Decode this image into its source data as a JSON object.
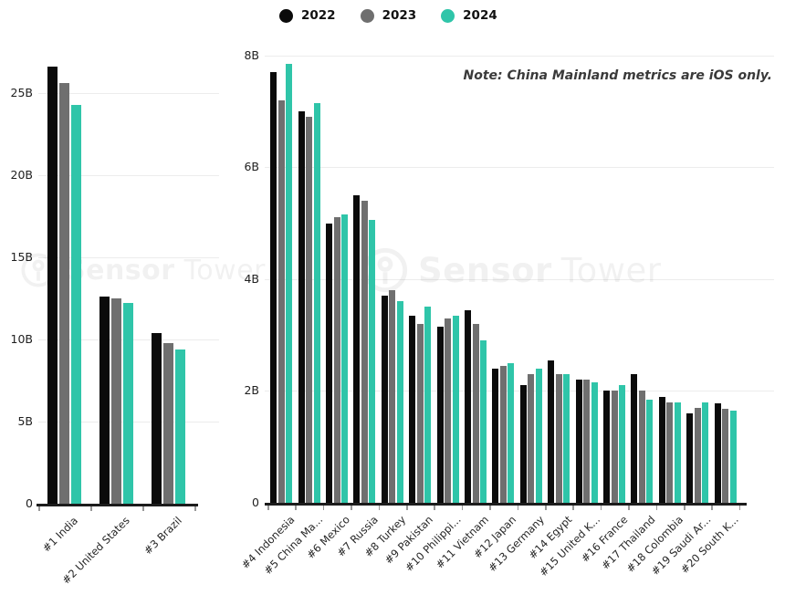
{
  "legend": {
    "items": [
      {
        "label": "2022",
        "color": "#0b0b0b"
      },
      {
        "label": "2023",
        "color": "#6f6f6f"
      },
      {
        "label": "2024",
        "color": "#2fc5a9"
      }
    ]
  },
  "note": "Note: China Mainland metrics are iOS only.",
  "watermark": {
    "brand_bold": "Sensor",
    "brand_light": "Tower"
  },
  "chart_data": [
    {
      "type": "bar",
      "categories": [
        "#1 India",
        "#2 United States",
        "#3 Brazil"
      ],
      "series": [
        {
          "name": "2022",
          "color": "#0b0b0b",
          "values": [
            26.6,
            12.6,
            10.4
          ]
        },
        {
          "name": "2023",
          "color": "#6f6f6f",
          "values": [
            25.6,
            12.5,
            9.8
          ]
        },
        {
          "name": "2024",
          "color": "#2fc5a9",
          "values": [
            24.3,
            12.2,
            9.4
          ]
        }
      ],
      "ylim": [
        0,
        27.8
      ],
      "yticks": [
        {
          "value": 0,
          "label": "0"
        },
        {
          "value": 5,
          "label": "5B"
        },
        {
          "value": 10,
          "label": "10B"
        },
        {
          "value": 15,
          "label": "15B"
        },
        {
          "value": 20,
          "label": "20B"
        },
        {
          "value": 25,
          "label": "25B"
        }
      ],
      "grid": true,
      "legend_position": "top"
    },
    {
      "type": "bar",
      "categories": [
        "#4 Indonesia",
        "#5 China Ma...",
        "#6 Mexico",
        "#7 Russia",
        "#8 Turkey",
        "#9 Pakistan",
        "#10 Philippi...",
        "#11 Vietnam",
        "#12 Japan",
        "#13 Germany",
        "#14 Egypt",
        "#15 United K...",
        "#16 France",
        "#17 Thailand",
        "#18 Colombia",
        "#19 Saudi Ar...",
        "#20 South K..."
      ],
      "series": [
        {
          "name": "2022",
          "color": "#0b0b0b",
          "values": [
            7.7,
            7.0,
            5.0,
            5.5,
            3.7,
            3.35,
            3.15,
            3.45,
            2.4,
            2.1,
            2.55,
            2.2,
            2.0,
            2.3,
            1.9,
            1.6,
            1.78
          ]
        },
        {
          "name": "2023",
          "color": "#6f6f6f",
          "values": [
            7.2,
            6.9,
            5.1,
            5.4,
            3.8,
            3.2,
            3.3,
            3.2,
            2.45,
            2.3,
            2.3,
            2.2,
            2.0,
            2.0,
            1.8,
            1.7,
            1.68
          ]
        },
        {
          "name": "2024",
          "color": "#2fc5a9",
          "values": [
            7.85,
            7.15,
            5.15,
            5.05,
            3.6,
            3.5,
            3.35,
            2.9,
            2.5,
            2.4,
            2.3,
            2.15,
            2.1,
            1.85,
            1.8,
            1.8,
            1.65
          ]
        }
      ],
      "ylim": [
        0,
        8.2
      ],
      "yticks": [
        {
          "value": 0,
          "label": "0"
        },
        {
          "value": 2,
          "label": "2B"
        },
        {
          "value": 4,
          "label": "4B"
        },
        {
          "value": 6,
          "label": "6B"
        },
        {
          "value": 8,
          "label": "8B"
        }
      ],
      "grid": true,
      "legend_position": "top"
    }
  ]
}
